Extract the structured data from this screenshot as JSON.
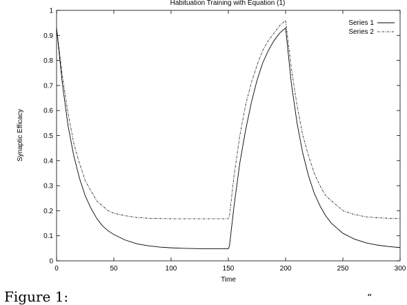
{
  "chart_data": {
    "type": "line",
    "title": "Habituation Training with Equation (1)",
    "xlabel": "Time",
    "ylabel": "Synaptic Efficacy",
    "xlim": [
      0,
      300
    ],
    "ylim": [
      0,
      1
    ],
    "xticks": [
      "0",
      "50",
      "100",
      "150",
      "200",
      "250",
      "300"
    ],
    "yticks": [
      "0",
      "0.1",
      "0.2",
      "0.3",
      "0.4",
      "0.5",
      "0.6",
      "0.7",
      "0.8",
      "0.9",
      "1"
    ],
    "grid": false,
    "legend_position": "top-right",
    "x": [
      0,
      5,
      10,
      15,
      20,
      25,
      30,
      35,
      40,
      45,
      50,
      60,
      70,
      80,
      90,
      100,
      110,
      120,
      130,
      140,
      150,
      151,
      155,
      160,
      165,
      170,
      175,
      180,
      185,
      190,
      195,
      200,
      205,
      210,
      215,
      220,
      225,
      230,
      235,
      240,
      245,
      250,
      260,
      270,
      280,
      290,
      300
    ],
    "series": [
      {
        "name": "Series 1",
        "style": "solid",
        "values": [
          0.93,
          0.71,
          0.54,
          0.42,
          0.33,
          0.26,
          0.21,
          0.17,
          0.14,
          0.12,
          0.105,
          0.083,
          0.068,
          0.06,
          0.055,
          0.052,
          0.05,
          0.049,
          0.048,
          0.048,
          0.048,
          0.06,
          0.22,
          0.39,
          0.52,
          0.63,
          0.72,
          0.79,
          0.84,
          0.88,
          0.91,
          0.93,
          0.71,
          0.55,
          0.43,
          0.34,
          0.27,
          0.22,
          0.18,
          0.15,
          0.13,
          0.11,
          0.087,
          0.072,
          0.063,
          0.057,
          0.053
        ]
      },
      {
        "name": "Series 2",
        "style": "dash-dot",
        "values": [
          0.93,
          0.74,
          0.59,
          0.47,
          0.39,
          0.32,
          0.28,
          0.24,
          0.22,
          0.2,
          0.19,
          0.18,
          0.173,
          0.17,
          0.169,
          0.168,
          0.168,
          0.168,
          0.168,
          0.168,
          0.168,
          0.18,
          0.34,
          0.5,
          0.62,
          0.71,
          0.78,
          0.84,
          0.88,
          0.91,
          0.94,
          0.96,
          0.77,
          0.62,
          0.5,
          0.42,
          0.35,
          0.3,
          0.26,
          0.24,
          0.22,
          0.2,
          0.185,
          0.176,
          0.172,
          0.17,
          0.169
        ]
      }
    ]
  },
  "caption": {
    "text": "Figure 1:",
    "tail": "“"
  }
}
